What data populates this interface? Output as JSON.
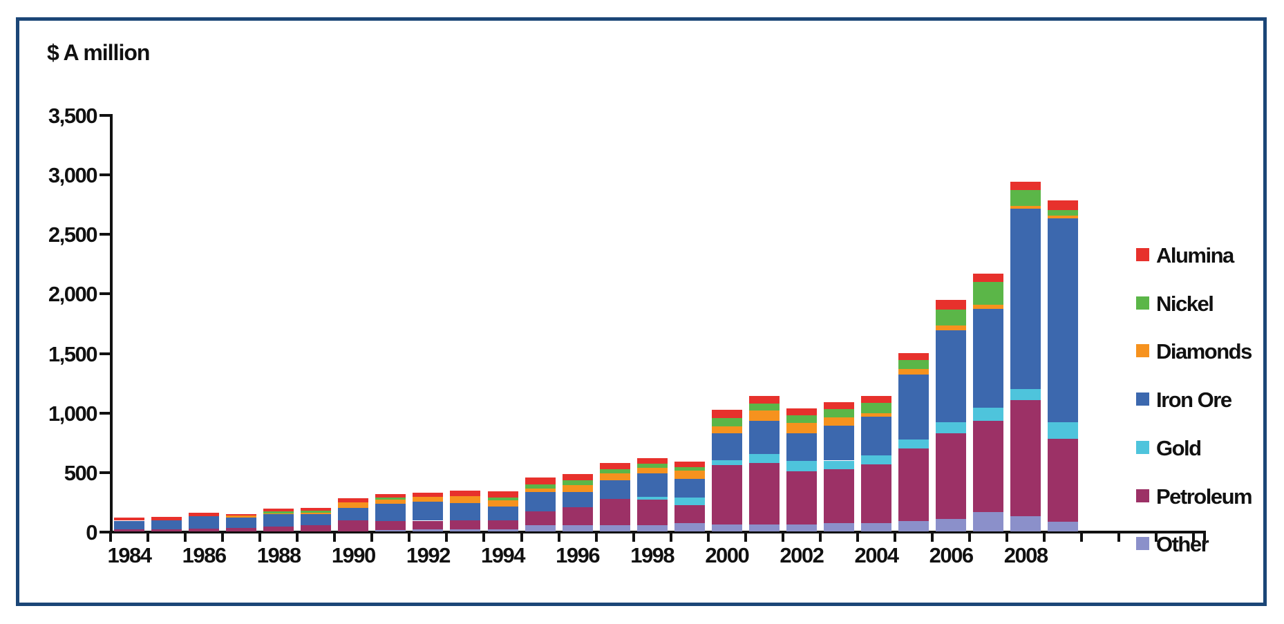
{
  "frame": {
    "border_color": "#1B4677"
  },
  "chart_data": {
    "type": "bar",
    "stacked": true,
    "title": "$ A million",
    "ylabel": "$ A million",
    "xlabel": "",
    "ylim": [
      0,
      3500
    ],
    "ytick_step": 500,
    "ytick_labels": [
      "0",
      "500",
      "1,000",
      "1,500",
      "2,000",
      "2,500",
      "3,000",
      "3,500"
    ],
    "grid": false,
    "legend_position": "right",
    "categories": [
      "1984",
      "1985",
      "1986",
      "1987",
      "1988",
      "1989",
      "1990",
      "1991",
      "1992",
      "1993",
      "1994",
      "1995",
      "1996",
      "1997",
      "1998",
      "1999",
      "2000",
      "2001",
      "2002",
      "2003",
      "2004",
      "2005",
      "2006",
      "2007",
      "2008",
      "2009"
    ],
    "xtick_labels": [
      "1984",
      "1986",
      "1988",
      "1990",
      "1992",
      "1994",
      "1996",
      "1998",
      "2000",
      "2002",
      "2004",
      "2006",
      "2008"
    ],
    "series_bottom_to_top": [
      {
        "name": "Other",
        "color": "#8B90CA",
        "values": [
          0,
          0,
          0,
          0,
          0,
          0,
          0,
          10,
          15,
          15,
          20,
          50,
          55,
          55,
          55,
          70,
          60,
          60,
          60,
          70,
          70,
          85,
          105,
          160,
          130,
          80
        ]
      },
      {
        "name": "Petroleum",
        "color": "#9C3166",
        "values": [
          20,
          20,
          25,
          30,
          40,
          50,
          95,
          75,
          75,
          80,
          75,
          120,
          150,
          220,
          210,
          150,
          495,
          515,
          445,
          455,
          495,
          610,
          720,
          770,
          975,
          700
        ]
      },
      {
        "name": "Gold",
        "color": "#4EC4DC",
        "values": [
          0,
          0,
          0,
          0,
          0,
          0,
          0,
          0,
          0,
          0,
          0,
          0,
          0,
          0,
          25,
          65,
          45,
          75,
          85,
          70,
          75,
          75,
          90,
          110,
          90,
          135
        ]
      },
      {
        "name": "Iron Ore",
        "color": "#3C68AE",
        "values": [
          70,
          75,
          105,
          85,
          105,
          95,
          105,
          150,
          160,
          145,
          115,
          160,
          125,
          155,
          195,
          155,
          225,
          280,
          235,
          295,
          325,
          545,
          775,
          830,
          1515,
          1715
        ]
      },
      {
        "name": "Diamonds",
        "color": "#F6921E",
        "values": [
          0,
          0,
          0,
          20,
          5,
          10,
          45,
          30,
          40,
          55,
          50,
          30,
          60,
          55,
          50,
          70,
          60,
          85,
          85,
          65,
          25,
          50,
          40,
          35,
          25,
          20
        ]
      },
      {
        "name": "Nickel",
        "color": "#5BB648",
        "values": [
          0,
          0,
          0,
          0,
          20,
          20,
          0,
          20,
          0,
          0,
          25,
          35,
          40,
          40,
          35,
          30,
          65,
          60,
          65,
          70,
          90,
          75,
          135,
          190,
          130,
          50
        ]
      },
      {
        "name": "Alumina",
        "color": "#E7312C",
        "values": [
          25,
          25,
          25,
          10,
          20,
          20,
          35,
          30,
          35,
          50,
          50,
          60,
          50,
          50,
          45,
          45,
          70,
          60,
          60,
          60,
          60,
          60,
          80,
          70,
          70,
          80
        ]
      }
    ],
    "legend_top_to_bottom": [
      "Alumina",
      "Nickel",
      "Diamonds",
      "Iron Ore",
      "Gold",
      "Petroleum",
      "Other"
    ]
  }
}
